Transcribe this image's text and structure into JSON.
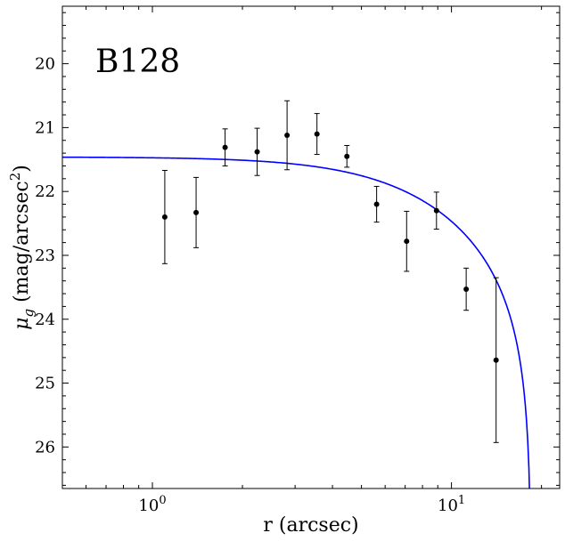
{
  "chart_data": {
    "type": "scatter",
    "title": "B128",
    "xlabel": "r (arcsec)",
    "ylabel_main": "μ",
    "ylabel_sub": "g",
    "ylabel_rest": " (mag/arcsec",
    "ylabel_sup": "2",
    "ylabel_end": ")",
    "x_scale": "log",
    "xlim": [
      0.5,
      23
    ],
    "ylim": [
      26.65,
      19.1
    ],
    "y_inverted": true,
    "x_major_ticks": [
      {
        "value": 1,
        "base": "10",
        "exp": "0"
      },
      {
        "value": 10,
        "base": "10",
        "exp": "1"
      }
    ],
    "y_ticks": [
      "20",
      "21",
      "22",
      "23",
      "24",
      "25",
      "26"
    ],
    "grid": false,
    "colors": {
      "points": "#000000",
      "errorbars": "#000000",
      "model": "#0000ff"
    },
    "series": [
      {
        "type": "errorbar",
        "points": [
          {
            "x": 1.1,
            "y": 22.4,
            "err": 0.73
          },
          {
            "x": 1.4,
            "y": 22.33,
            "err": 0.55
          },
          {
            "x": 1.75,
            "y": 21.31,
            "err": 0.29
          },
          {
            "x": 2.24,
            "y": 21.38,
            "err": 0.37
          },
          {
            "x": 2.82,
            "y": 21.12,
            "err": 0.54
          },
          {
            "x": 3.55,
            "y": 21.1,
            "err": 0.32
          },
          {
            "x": 4.47,
            "y": 21.45,
            "err": 0.17
          },
          {
            "x": 5.62,
            "y": 22.2,
            "err": 0.28
          },
          {
            "x": 7.08,
            "y": 22.78,
            "err": 0.47
          },
          {
            "x": 8.91,
            "y": 22.3,
            "err": 0.29
          },
          {
            "x": 11.2,
            "y": 23.53,
            "err": 0.33
          },
          {
            "x": 14.1,
            "y": 24.64,
            "err": 1.29
          }
        ]
      },
      {
        "type": "line",
        "model": "king",
        "params": {
          "mu0": 21.46,
          "rc": 8.5,
          "rt": 18.5
        }
      }
    ]
  }
}
